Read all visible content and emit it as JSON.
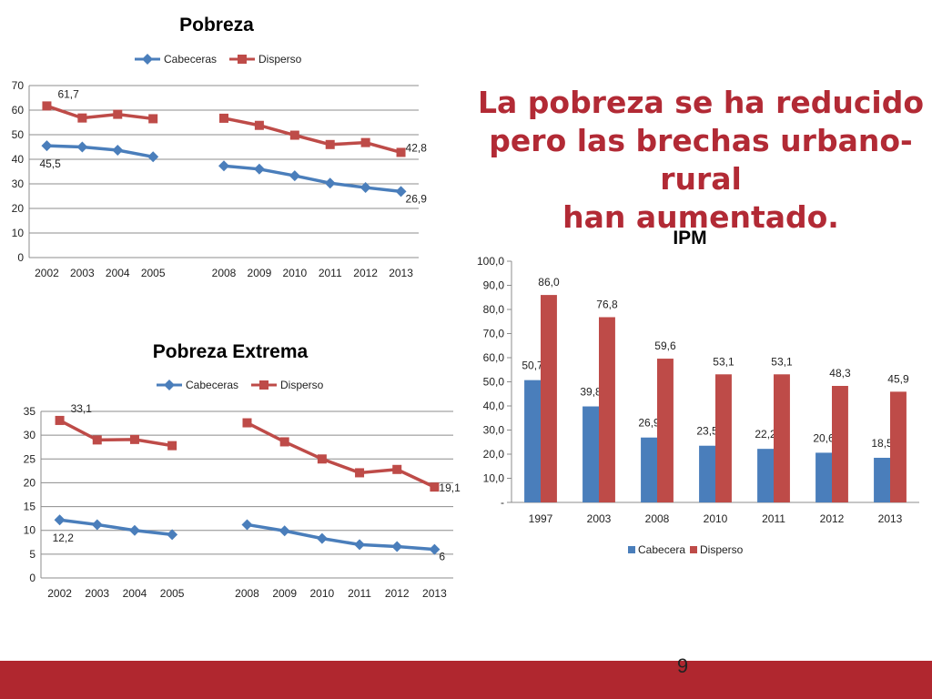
{
  "slide": {
    "headline": [
      "La pobreza se ha reducido",
      "pero las brechas urbano-rural",
      "han aumentado."
    ],
    "page_number": "9",
    "colors": {
      "title": "#b22a35",
      "footer": "#b0272f",
      "cabeceras": "#4a7ebb",
      "disperso": "#be4b48"
    }
  },
  "chart_data": [
    {
      "id": "pobreza",
      "type": "line",
      "title": "Pobreza",
      "legend": [
        "Cabeceras",
        "Disperso"
      ],
      "legend_position": "top",
      "categories": [
        "2002",
        "2003",
        "2004",
        "2005",
        "",
        "2008",
        "2009",
        "2010",
        "2011",
        "2012",
        "2013"
      ],
      "series": [
        {
          "name": "Cabeceras",
          "values": [
            45.5,
            45.0,
            43.7,
            41.0,
            null,
            37.3,
            36.0,
            33.3,
            30.3,
            28.5,
            26.9
          ],
          "labels": [
            {
              "index": 0,
              "text": "45,5"
            },
            {
              "index": 10,
              "text": "26,9"
            }
          ]
        },
        {
          "name": "Disperso",
          "values": [
            61.7,
            56.8,
            58.3,
            56.5,
            null,
            56.7,
            53.8,
            49.8,
            46.0,
            46.8,
            42.8
          ],
          "labels": [
            {
              "index": 0,
              "text": "61,7"
            },
            {
              "index": 10,
              "text": "42,8"
            }
          ]
        }
      ],
      "ylim": [
        0,
        70
      ],
      "yticks": [
        0,
        10,
        20,
        30,
        40,
        50,
        60,
        70
      ],
      "ytick_labels": [
        "0",
        "10",
        "20",
        "30",
        "40",
        "50",
        "60",
        "70"
      ],
      "grid": true
    },
    {
      "id": "pobreza-extrema",
      "type": "line",
      "title": "Pobreza Extrema",
      "legend": [
        "Cabeceras",
        "Disperso"
      ],
      "legend_position": "top",
      "categories": [
        "2002",
        "2003",
        "2004",
        "2005",
        "",
        "2008",
        "2009",
        "2010",
        "2011",
        "2012",
        "2013"
      ],
      "series": [
        {
          "name": "Cabeceras",
          "values": [
            12.2,
            11.2,
            10.0,
            9.1,
            null,
            11.2,
            9.9,
            8.3,
            7.0,
            6.6,
            6.0
          ],
          "labels": [
            {
              "index": 0,
              "text": "12,2"
            },
            {
              "index": 10,
              "text": "6"
            }
          ]
        },
        {
          "name": "Disperso",
          "values": [
            33.1,
            29.0,
            29.1,
            27.8,
            null,
            32.6,
            28.6,
            25.0,
            22.1,
            22.8,
            19.1
          ],
          "labels": [
            {
              "index": 0,
              "text": "33,1"
            },
            {
              "index": 10,
              "text": "19,1"
            }
          ]
        }
      ],
      "ylim": [
        0,
        35
      ],
      "yticks": [
        0,
        5,
        10,
        15,
        20,
        25,
        30,
        35
      ],
      "ytick_labels": [
        "0",
        "5",
        "10",
        "15",
        "20",
        "25",
        "30",
        "35"
      ],
      "grid": true
    },
    {
      "id": "ipm",
      "type": "bar",
      "title": "IPM",
      "legend": [
        "Cabecera",
        "Disperso"
      ],
      "legend_position": "bottom",
      "categories": [
        "1997",
        "2003",
        "2008",
        "2010",
        "2011",
        "2012",
        "2013"
      ],
      "series": [
        {
          "name": "Cabecera",
          "values": [
            50.7,
            39.8,
            26.9,
            23.5,
            22.2,
            20.6,
            18.5
          ],
          "labels": [
            "50,7",
            "39,8",
            "26,9",
            "23,5",
            "22,2",
            "20,6",
            "18,5"
          ]
        },
        {
          "name": "Disperso",
          "values": [
            86.0,
            76.8,
            59.6,
            53.1,
            53.1,
            48.3,
            45.9
          ],
          "labels": [
            "86,0",
            "76,8",
            "59,6",
            "53,1",
            "53,1",
            "48,3",
            "45,9"
          ]
        }
      ],
      "ylim": [
        0,
        100
      ],
      "yticks": [
        0,
        10,
        20,
        30,
        40,
        50,
        60,
        70,
        80,
        90,
        100
      ],
      "ytick_labels": [
        "-",
        "10,0",
        "20,0",
        "30,0",
        "40,0",
        "50,0",
        "60,0",
        "70,0",
        "80,0",
        "90,0",
        "100,0"
      ],
      "grid": false
    }
  ]
}
